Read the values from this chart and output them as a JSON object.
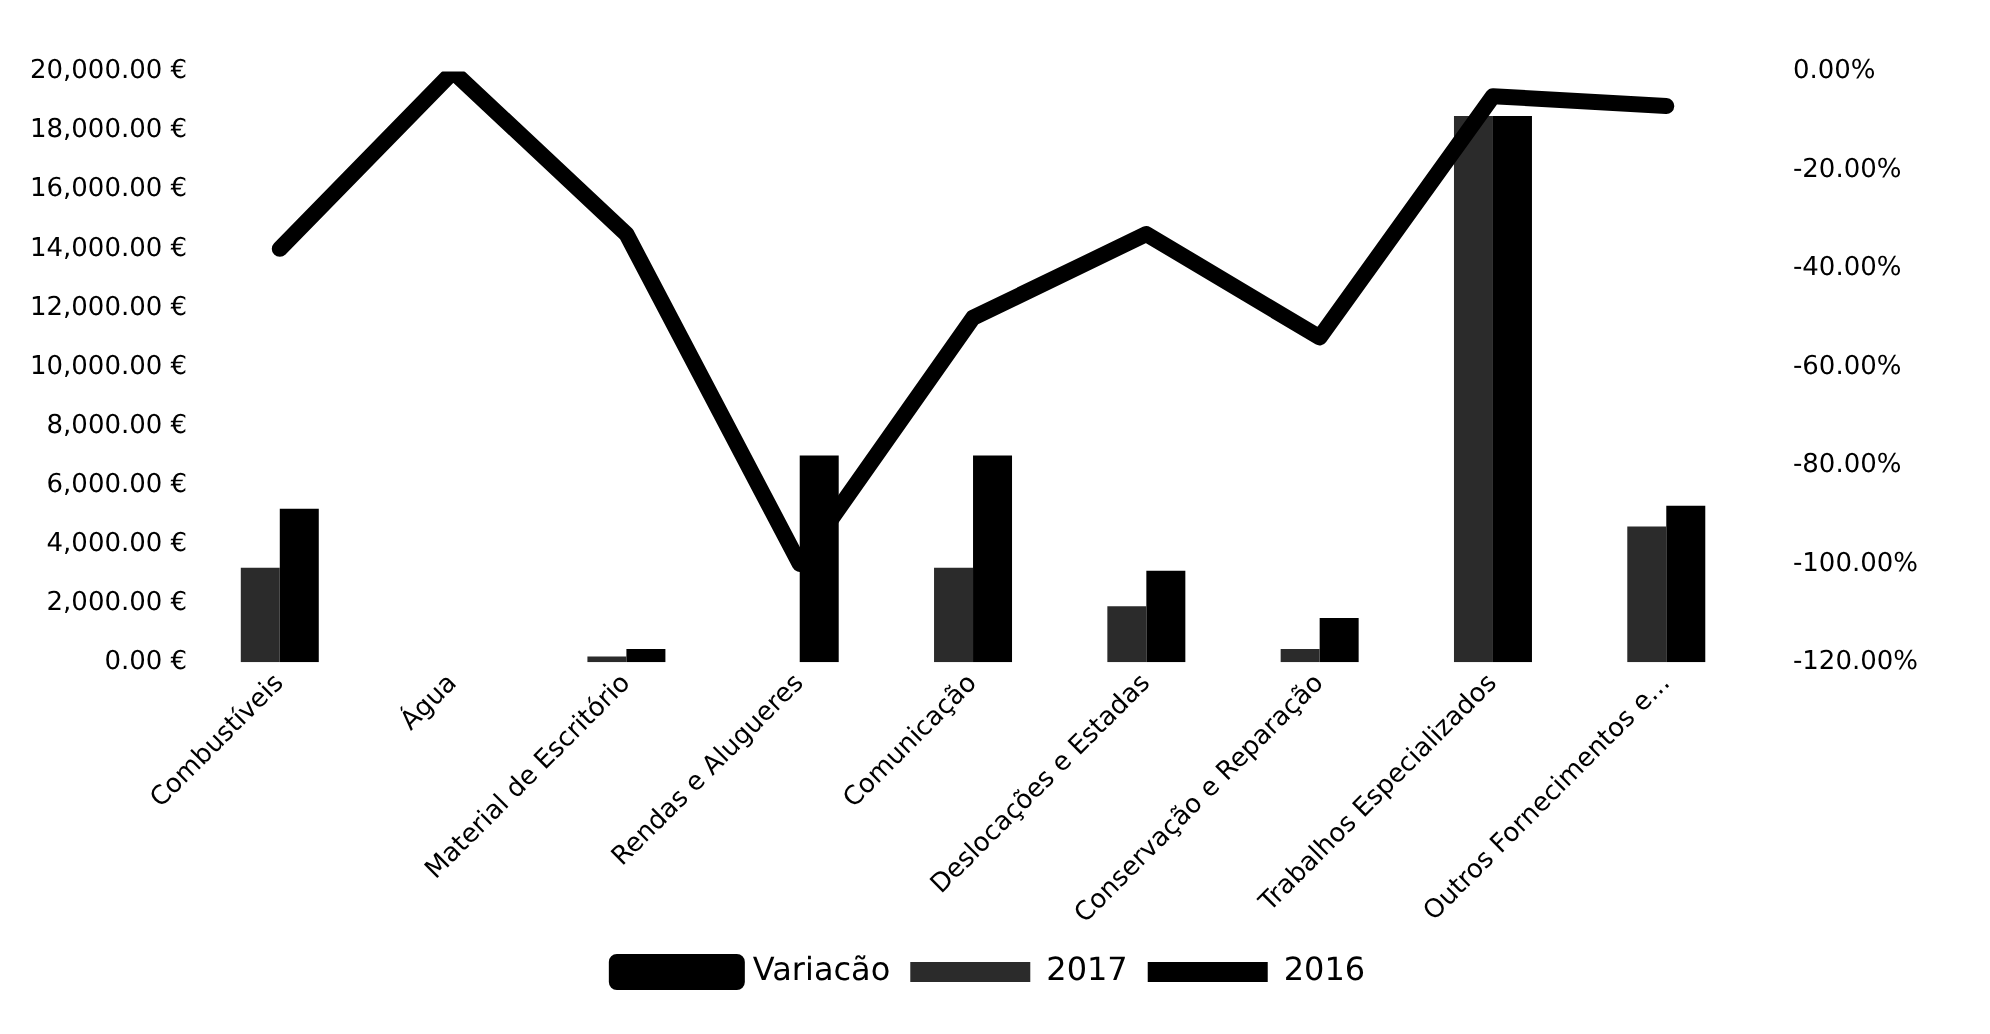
{
  "chart_data": {
    "type": "bar",
    "categories": [
      "Combustíveis",
      "Água",
      "Material de Escritório",
      "Rendas e Alugueres",
      "Comunicação",
      "Deslocações e Estadas",
      "Conservação e Reparação",
      "Trabalhos Especializados",
      "Outros Fornecimentos e..."
    ],
    "series": [
      {
        "name": "2017",
        "color": "#2b2b2b",
        "values": [
          3200,
          0,
          200,
          0,
          3200,
          1900,
          450,
          18500,
          4600
        ]
      },
      {
        "name": "2016",
        "color": "#000000",
        "values": [
          5200,
          0,
          450,
          7000,
          7000,
          3100,
          1500,
          18500,
          5300
        ]
      },
      {
        "name": "Variacão",
        "type": "line",
        "axis": "y2",
        "color": "#000000",
        "values": [
          -36,
          0,
          -33,
          -100,
          -50,
          -33,
          -54,
          -5,
          -7
        ]
      }
    ],
    "ylim": [
      0,
      20000
    ],
    "yticks": [
      {
        "value": 0,
        "label": "0.00 €"
      },
      {
        "value": 2000,
        "label": "2,000.00 €"
      },
      {
        "value": 4000,
        "label": "4,000.00 €"
      },
      {
        "value": 6000,
        "label": "6,000.00 €"
      },
      {
        "value": 8000,
        "label": "8,000.00 €"
      },
      {
        "value": 10000,
        "label": "10,000.00 €"
      },
      {
        "value": 12000,
        "label": "12,000.00 €"
      },
      {
        "value": 14000,
        "label": "14,000.00 €"
      },
      {
        "value": 16000,
        "label": "16,000.00 €"
      },
      {
        "value": 18000,
        "label": "18,000.00 €"
      },
      {
        "value": 20000,
        "label": "20,000.00 €"
      }
    ],
    "y2lim": [
      -120,
      0
    ],
    "y2ticks": [
      {
        "value": -120,
        "label": "-120.00%"
      },
      {
        "value": -100,
        "label": "-100.00%"
      },
      {
        "value": -80,
        "label": "-80.00%"
      },
      {
        "value": -60,
        "label": "-60.00%"
      },
      {
        "value": -40,
        "label": "-40.00%"
      },
      {
        "value": -20,
        "label": "-20.00%"
      },
      {
        "value": 0,
        "label": "0.00%"
      }
    ],
    "grid": false,
    "legend": "bottom",
    "marker": "none"
  }
}
